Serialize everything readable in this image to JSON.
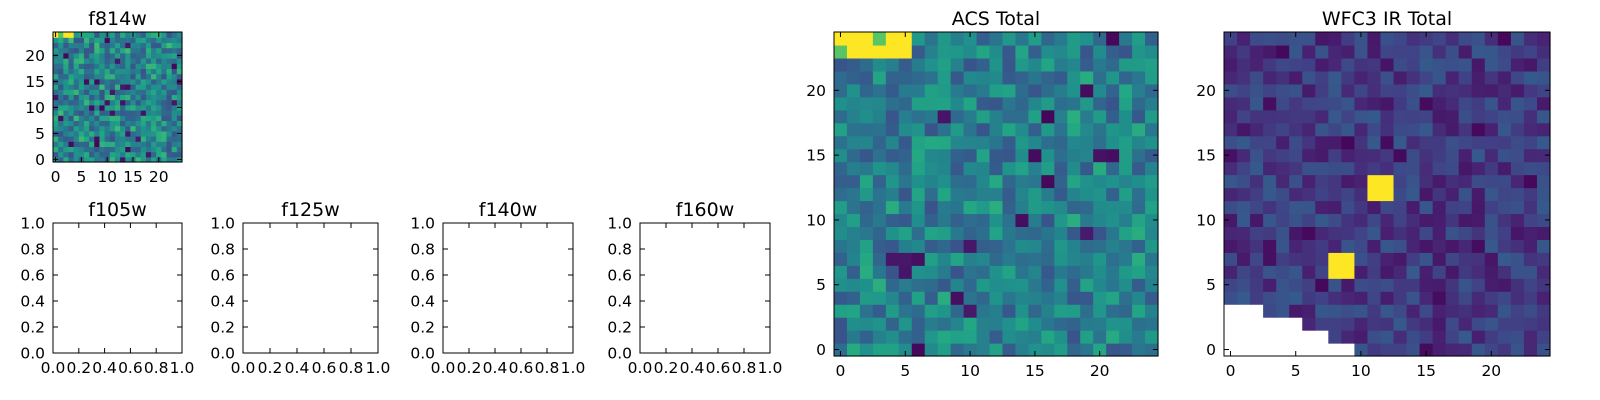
{
  "figure_title": "",
  "chart_data": [
    {
      "type": "heatmap",
      "panel": "f814w",
      "title": "f814w",
      "xlabel": "",
      "ylabel": "",
      "xlim": [
        -0.5,
        24.5
      ],
      "ylim": [
        -0.5,
        24.5
      ],
      "xticks": [
        0,
        5,
        10,
        15,
        20
      ],
      "yticks": [
        0,
        5,
        10,
        15,
        20
      ],
      "xtick_labels": [
        "0",
        "5",
        "10",
        "15",
        "20"
      ],
      "ytick_labels": [
        "0",
        "5",
        "10",
        "15",
        "20"
      ],
      "grid": false,
      "colormap": "viridis",
      "shape": [
        25,
        25
      ],
      "bright_region": {
        "x": [
          0,
          3
        ],
        "y": [
          24,
          24
        ]
      },
      "seed": 814
    },
    {
      "type": "heatmap",
      "panel": "f105w",
      "title": "f105w",
      "empty": true,
      "xlim": [
        0.0,
        1.0
      ],
      "ylim": [
        0.0,
        1.0
      ],
      "xticks": [
        0.0,
        0.2,
        0.4,
        0.6,
        0.8,
        1.0
      ],
      "yticks": [
        0.0,
        0.2,
        0.4,
        0.6,
        0.8,
        1.0
      ],
      "xtick_labels": [
        "0.0",
        "0.2",
        "0.4",
        "0.6",
        "0.8",
        "1.0"
      ],
      "ytick_labels": [
        "0.0",
        "0.2",
        "0.4",
        "0.6",
        "0.8",
        "1.0"
      ],
      "grid": false
    },
    {
      "type": "heatmap",
      "panel": "f125w",
      "title": "f125w",
      "empty": true,
      "xlim": [
        0.0,
        1.0
      ],
      "ylim": [
        0.0,
        1.0
      ],
      "xticks": [
        0.0,
        0.2,
        0.4,
        0.6,
        0.8,
        1.0
      ],
      "yticks": [
        0.0,
        0.2,
        0.4,
        0.6,
        0.8,
        1.0
      ],
      "xtick_labels": [
        "0.0",
        "0.2",
        "0.4",
        "0.6",
        "0.8",
        "1.0"
      ],
      "ytick_labels": [
        "0.0",
        "0.2",
        "0.4",
        "0.6",
        "0.8",
        "1.0"
      ],
      "grid": false
    },
    {
      "type": "heatmap",
      "panel": "f140w",
      "title": "f140w",
      "empty": true,
      "xlim": [
        0.0,
        1.0
      ],
      "ylim": [
        0.0,
        1.0
      ],
      "xticks": [
        0.0,
        0.2,
        0.4,
        0.6,
        0.8,
        1.0
      ],
      "yticks": [
        0.0,
        0.2,
        0.4,
        0.6,
        0.8,
        1.0
      ],
      "xtick_labels": [
        "0.0",
        "0.2",
        "0.4",
        "0.6",
        "0.8",
        "1.0"
      ],
      "ytick_labels": [
        "0.0",
        "0.2",
        "0.4",
        "0.6",
        "0.8",
        "1.0"
      ],
      "grid": false
    },
    {
      "type": "heatmap",
      "panel": "f160w",
      "title": "f160w",
      "empty": true,
      "xlim": [
        0.0,
        1.0
      ],
      "ylim": [
        0.0,
        1.0
      ],
      "xticks": [
        0.0,
        0.2,
        0.4,
        0.6,
        0.8,
        1.0
      ],
      "yticks": [
        0.0,
        0.2,
        0.4,
        0.6,
        0.8,
        1.0
      ],
      "xtick_labels": [
        "0.0",
        "0.2",
        "0.4",
        "0.6",
        "0.8",
        "1.0"
      ],
      "ytick_labels": [
        "0.0",
        "0.2",
        "0.4",
        "0.6",
        "0.8",
        "1.0"
      ],
      "grid": false
    },
    {
      "type": "heatmap",
      "panel": "acs-total",
      "title": "ACS Total",
      "xlabel": "",
      "ylabel": "",
      "xlim": [
        -0.5,
        24.5
      ],
      "ylim": [
        -0.5,
        24.5
      ],
      "xticks": [
        0,
        5,
        10,
        15,
        20
      ],
      "yticks": [
        0,
        5,
        10,
        15,
        20
      ],
      "xtick_labels": [
        "0",
        "5",
        "10",
        "15",
        "20"
      ],
      "ytick_labels": [
        "0",
        "5",
        "10",
        "15",
        "20"
      ],
      "grid": false,
      "colormap": "viridis",
      "shape": [
        25,
        25
      ],
      "bright_region": {
        "x": [
          0,
          5
        ],
        "y": [
          23,
          24
        ]
      },
      "seed": 101
    },
    {
      "type": "heatmap",
      "panel": "wfc3-ir-total",
      "title": "WFC3 IR Total",
      "xlabel": "",
      "ylabel": "",
      "xlim": [
        -0.5,
        24.5
      ],
      "ylim": [
        -0.5,
        24.5
      ],
      "xticks": [
        0,
        5,
        10,
        15,
        20
      ],
      "yticks": [
        0,
        5,
        10,
        15,
        20
      ],
      "xtick_labels": [
        "0",
        "5",
        "10",
        "15",
        "20"
      ],
      "ytick_labels": [
        "0",
        "5",
        "10",
        "15",
        "20"
      ],
      "grid": false,
      "colormap": "viridis",
      "shape": [
        25,
        25
      ],
      "bright_spots": [
        {
          "x": 11,
          "y": 12
        },
        {
          "x": 12,
          "y": 12
        },
        {
          "x": 11,
          "y": 13
        },
        {
          "x": 12,
          "y": 13
        },
        {
          "x": 8,
          "y": 6
        },
        {
          "x": 9,
          "y": 6
        },
        {
          "x": 9,
          "y": 7
        },
        {
          "x": 8,
          "y": 7
        }
      ],
      "missing_corner": "bottom-left",
      "seed": 303
    }
  ]
}
